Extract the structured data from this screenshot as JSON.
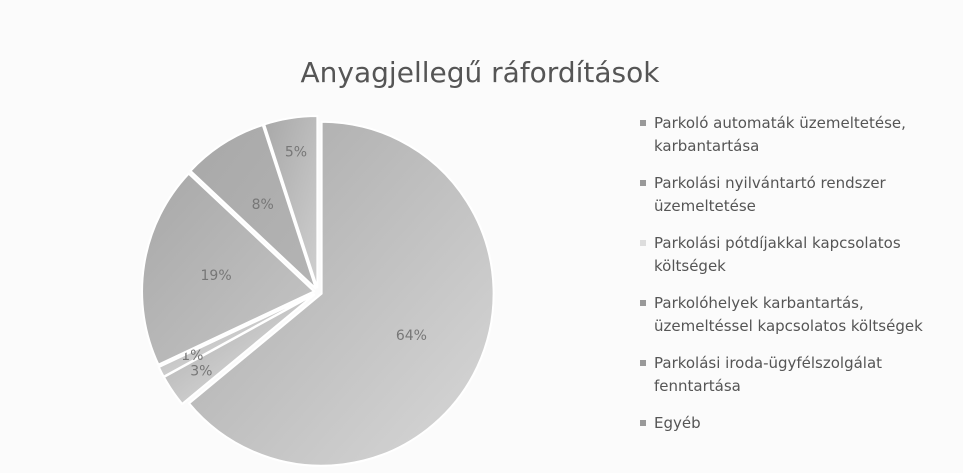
{
  "chart_data": {
    "type": "pie",
    "title": "Anyagjellegű ráfordítások",
    "categories": [
      "Parkoló automaták üzemeltetése, karbantartása",
      "Parkolási nyilvántartó rendszer üzemeltetése",
      "Parkolási pótdíjakkal kapcsolatos költségek",
      "Parkolóhelyek karbantartás, üzemeltéssel kapcsolatos költségek",
      "Parkolási iroda-ügyfélszolgálat fenntartása",
      "Egyéb"
    ],
    "values": [
      64,
      3,
      1,
      19,
      8,
      5
    ],
    "value_labels": [
      "64%",
      "3%",
      "1%",
      "19%",
      "8%",
      "5%"
    ],
    "colors": [
      "#d8d8d8",
      "#e6e6e6",
      "#eeeeee",
      "#c6c6c6",
      "#b4b4b4",
      "#cfcfcf"
    ],
    "legend": "right"
  }
}
